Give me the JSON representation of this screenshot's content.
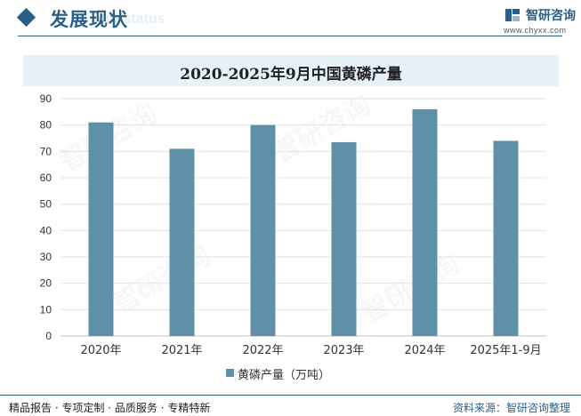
{
  "header": {
    "section_title": "发展现状",
    "section_title_bg": "ent status",
    "logo_name": "智研咨询",
    "logo_url": "www.chyxx.com"
  },
  "watermark_text": "智研咨询",
  "footer": {
    "left": "精品报告 · 专项定制 · 品质服务 · 专精特新",
    "right": "资料来源：智研咨询整理"
  },
  "colors": {
    "accent": "#2b5f86",
    "bar": "#5e91a8",
    "title_bg": "#e7f1f8"
  },
  "chart_data": {
    "type": "bar",
    "title": "2020-2025年9月中国黄磷产量",
    "categories": [
      "2020年",
      "2021年",
      "2022年",
      "2023年",
      "2024年",
      "2025年1-9月"
    ],
    "series": [
      {
        "name": "黄磷产量（万吨）",
        "values": [
          81,
          71,
          80,
          73.5,
          86,
          74
        ]
      }
    ],
    "ylim": [
      0,
      90
    ],
    "yticks": [
      0,
      10,
      20,
      30,
      40,
      50,
      60,
      70,
      80,
      90
    ],
    "grid": true,
    "legend": "bottom"
  }
}
